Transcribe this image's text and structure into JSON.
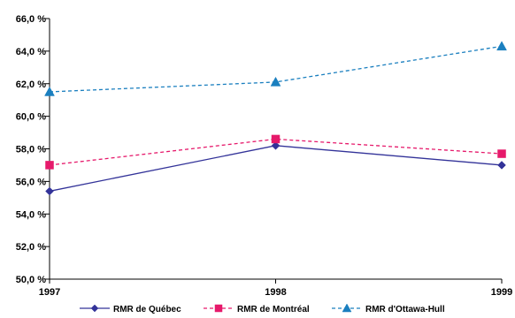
{
  "chart_data": {
    "type": "line",
    "x": [
      "1997",
      "1998",
      "1999"
    ],
    "ylim": [
      50,
      66
    ],
    "y_ticks": [
      "50,0 %",
      "52,0 %",
      "54,0 %",
      "56,0 %",
      "58,0 %",
      "60,0 %",
      "62,0 %",
      "64,0 %",
      "66,0 %"
    ],
    "grid": false,
    "legend_position": "bottom",
    "series": [
      {
        "name": "RMR de Québec",
        "values": [
          55.4,
          58.2,
          57.0
        ],
        "color": "#333399",
        "line_style": "solid",
        "marker": "diamond"
      },
      {
        "name": "RMR de Montréal",
        "values": [
          57.0,
          58.6,
          57.7
        ],
        "color": "#e6196b",
        "line_style": "dashed",
        "marker": "square"
      },
      {
        "name": "RMR d'Ottawa-Hull",
        "values": [
          61.5,
          62.1,
          64.3
        ],
        "color": "#1a7fbf",
        "line_style": "dashed",
        "marker": "triangle"
      }
    ]
  }
}
